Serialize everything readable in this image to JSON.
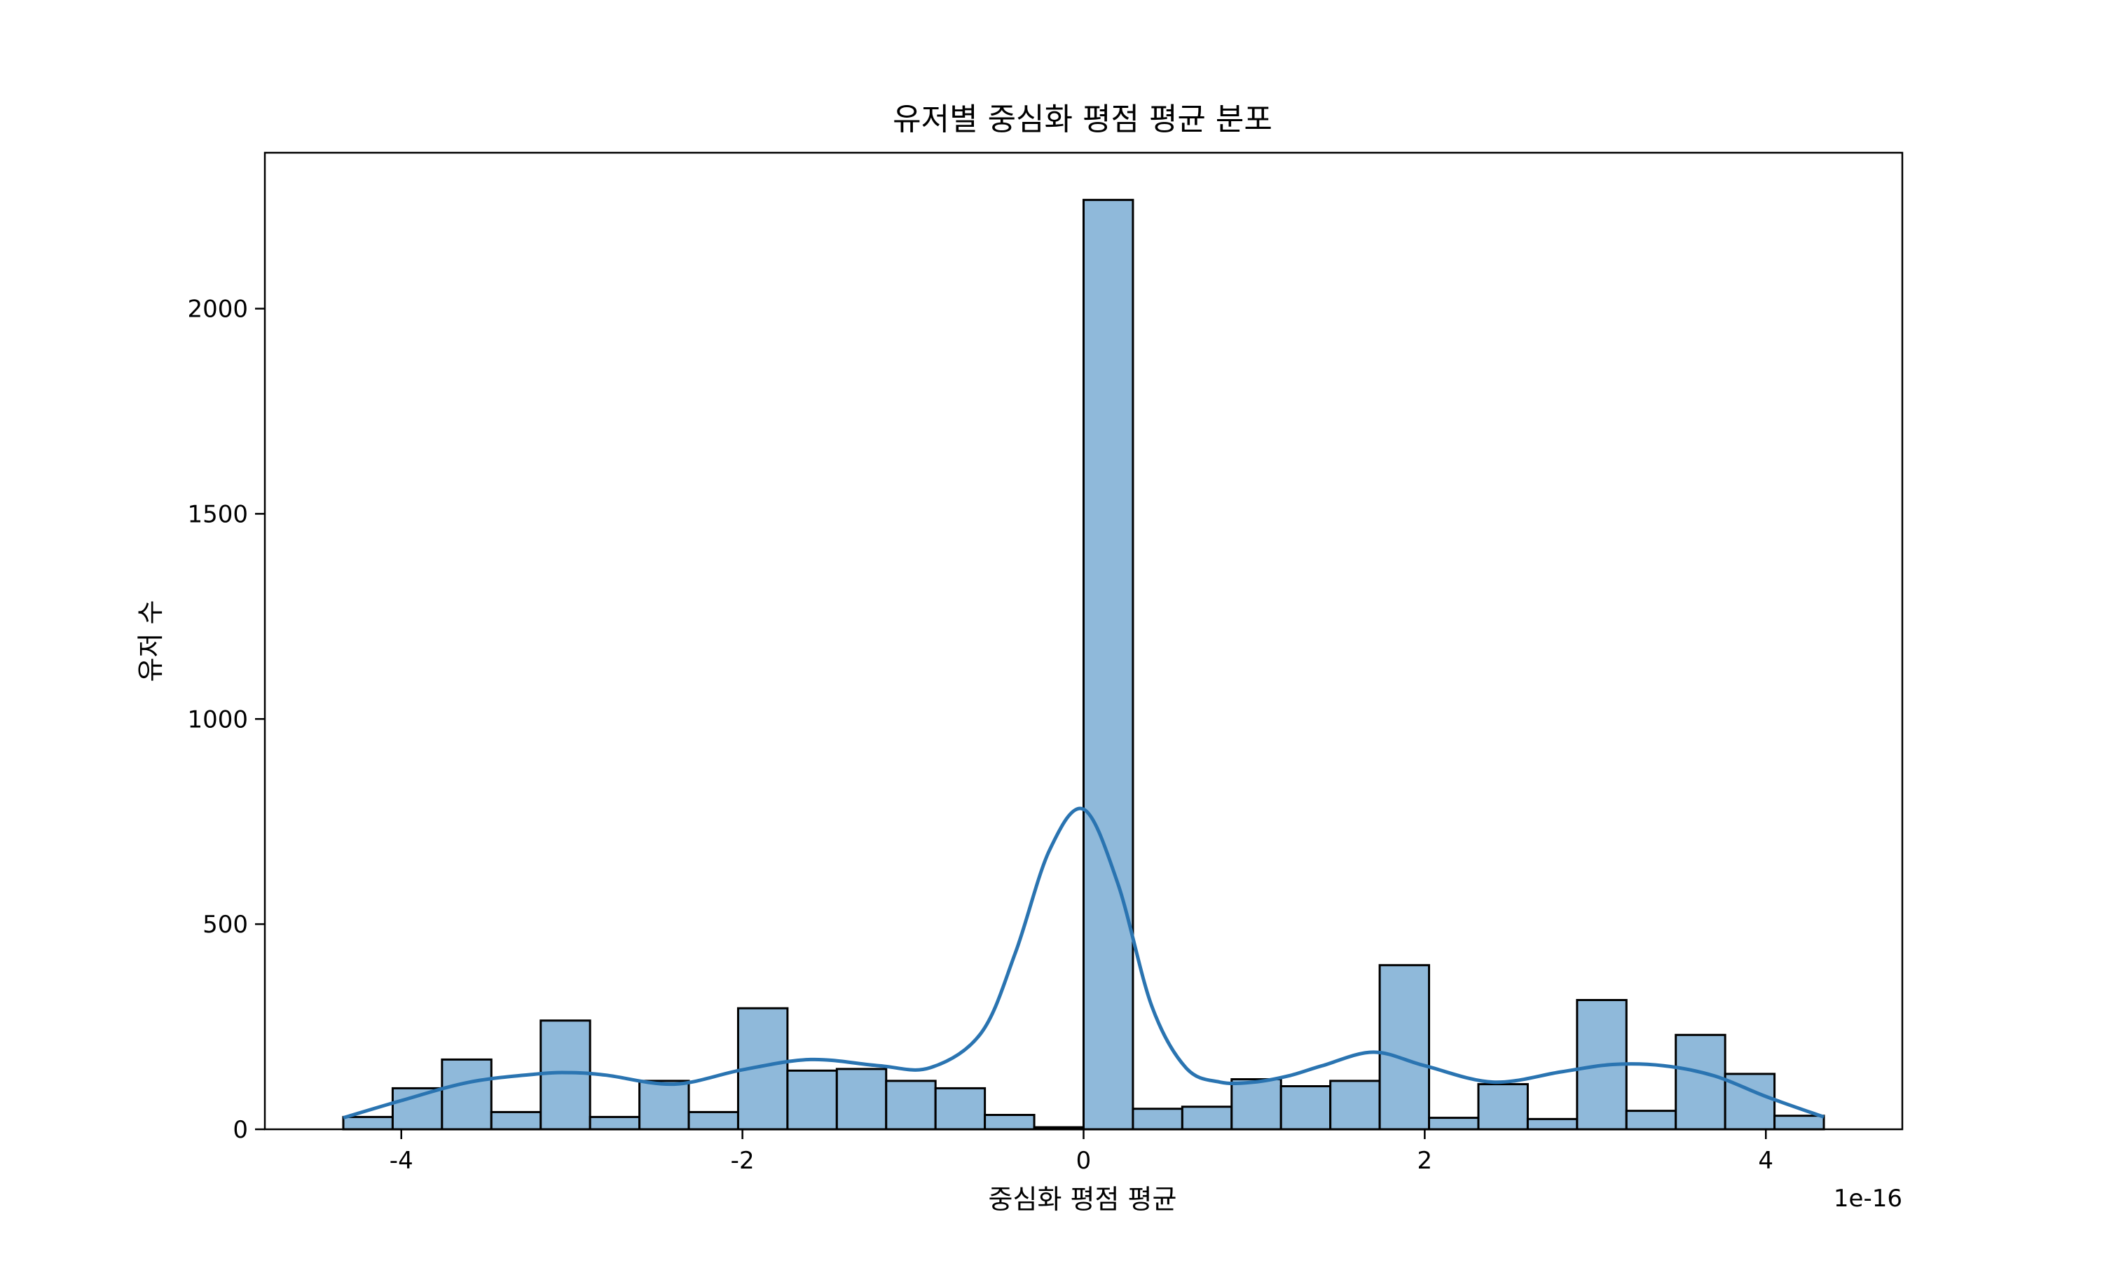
{
  "chart_data": {
    "type": "bar",
    "title": "유저별 중심화 평점 평균 분포",
    "xlabel": "중심화 평점 평균",
    "ylabel": "유저 수",
    "x_offset_label": "1e-16",
    "x_scale_factor": 1e-16,
    "xlim": [
      -4.8,
      4.8
    ],
    "ylim": [
      0,
      2380
    ],
    "xticks": [
      -4,
      -2,
      0,
      2,
      4
    ],
    "xtick_labels": [
      "-4",
      "-2",
      "0",
      "2",
      "4"
    ],
    "yticks": [
      0,
      500,
      1000,
      1500,
      2000
    ],
    "ytick_labels": [
      "0",
      "500",
      "1000",
      "1500",
      "2000"
    ],
    "grid": false,
    "bar_color": "#8fb9da",
    "line_color": "#2a74b1",
    "bins": {
      "x_start": -4.34,
      "x_end": 4.34,
      "counts": [
        30,
        100,
        170,
        42,
        265,
        30,
        118,
        42,
        295,
        143,
        147,
        118,
        100,
        35,
        5,
        2265,
        50,
        55,
        122,
        105,
        118,
        400,
        28,
        110,
        25,
        315,
        45,
        230,
        135,
        33
      ]
    },
    "kde": {
      "x": [
        -4.34,
        -4.0,
        -3.6,
        -3.2,
        -3.0,
        -2.8,
        -2.4,
        -2.0,
        -1.6,
        -1.2,
        -0.9,
        -0.6,
        -0.4,
        -0.2,
        0.0,
        0.2,
        0.4,
        0.6,
        0.8,
        1.0,
        1.2,
        1.4,
        1.7,
        2.0,
        2.4,
        2.8,
        3.1,
        3.4,
        3.7,
        4.0,
        4.34
      ],
      "y": [
        28,
        70,
        115,
        135,
        138,
        132,
        110,
        145,
        170,
        155,
        150,
        235,
        430,
        680,
        780,
        600,
        300,
        150,
        115,
        115,
        130,
        155,
        188,
        155,
        115,
        140,
        158,
        155,
        130,
        80,
        30
      ]
    }
  }
}
